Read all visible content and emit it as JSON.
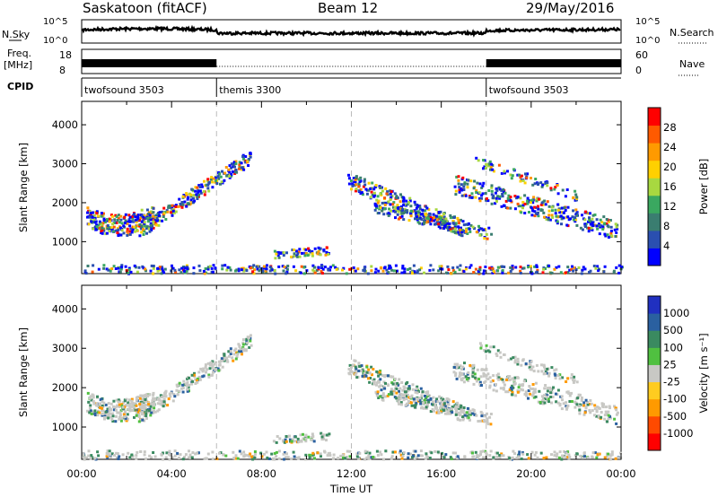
{
  "header": {
    "station": "Saskatoon (fitACF)",
    "beam": "Beam 12",
    "date": "29/May/2016"
  },
  "colors": {
    "power": [
      "#0000ff",
      "#2a4fb0",
      "#3a7d70",
      "#3aa860",
      "#a8d840",
      "#ffd000",
      "#ff9a00",
      "#ff5a00",
      "#ff0000"
    ],
    "velocity": [
      "#ff0000",
      "#ff4a00",
      "#ff9a00",
      "#ffcc20",
      "#c8c8c4",
      "#50c040",
      "#3a8a60",
      "#2a60a0",
      "#2030c0"
    ],
    "trace": "#000000"
  },
  "left_labels": {
    "nsky": "N.Sky",
    "freq": "Freq.",
    "mhz": "[MHz]",
    "cpid": "CPID"
  },
  "right_labels": {
    "nsearch": "N.Search",
    "nave": "Nave"
  },
  "chart_data": [
    {
      "type": "line",
      "name": "noise",
      "left_axis": {
        "label": "N.Sky",
        "ticks": [
          "10^5",
          "10^0"
        ]
      },
      "right_axis": {
        "label": "N.Search",
        "ticks": [
          "10^5",
          "10^0"
        ]
      }
    },
    {
      "type": "line",
      "name": "frequency",
      "left_axis": {
        "label": "Freq. [MHz]",
        "ticks": [
          18,
          8
        ]
      },
      "right_axis": {
        "label": "Nave",
        "ticks": [
          60,
          0
        ]
      }
    },
    {
      "type": "table",
      "name": "cpid",
      "segments": [
        {
          "label": "twofsound 3503",
          "start_hour": 0,
          "end_hour": 6
        },
        {
          "label": "themis 3300",
          "start_hour": 6,
          "end_hour": 18
        },
        {
          "label": "twofsound 3503",
          "start_hour": 18,
          "end_hour": 24
        }
      ]
    },
    {
      "type": "heatmap",
      "name": "power",
      "ylabel": "Slant Range [km]",
      "yticks": [
        1000,
        2000,
        3000,
        4000
      ],
      "ylim": [
        180,
        4600
      ],
      "xlim_hours": [
        0,
        24
      ],
      "colorbar": {
        "label": "Power [dB]",
        "ticks": [
          4,
          8,
          12,
          16,
          20,
          24,
          28
        ],
        "range": [
          0,
          32
        ]
      }
    },
    {
      "type": "heatmap",
      "name": "velocity",
      "ylabel": "Slant Range [km]",
      "yticks": [
        1000,
        2000,
        3000,
        4000
      ],
      "ylim": [
        180,
        4600
      ],
      "xlim_hours": [
        0,
        24
      ],
      "xlabel": "Time UT",
      "xtick_labels": [
        "00:00",
        "04:00",
        "08:00",
        "12:00",
        "16:00",
        "20:00",
        "00:00"
      ],
      "colorbar": {
        "label": "Velocity [m s⁻¹]",
        "ticks": [
          "1000",
          "500",
          "100",
          "25",
          "-25",
          "-100",
          "-500",
          "-1000"
        ]
      }
    }
  ]
}
